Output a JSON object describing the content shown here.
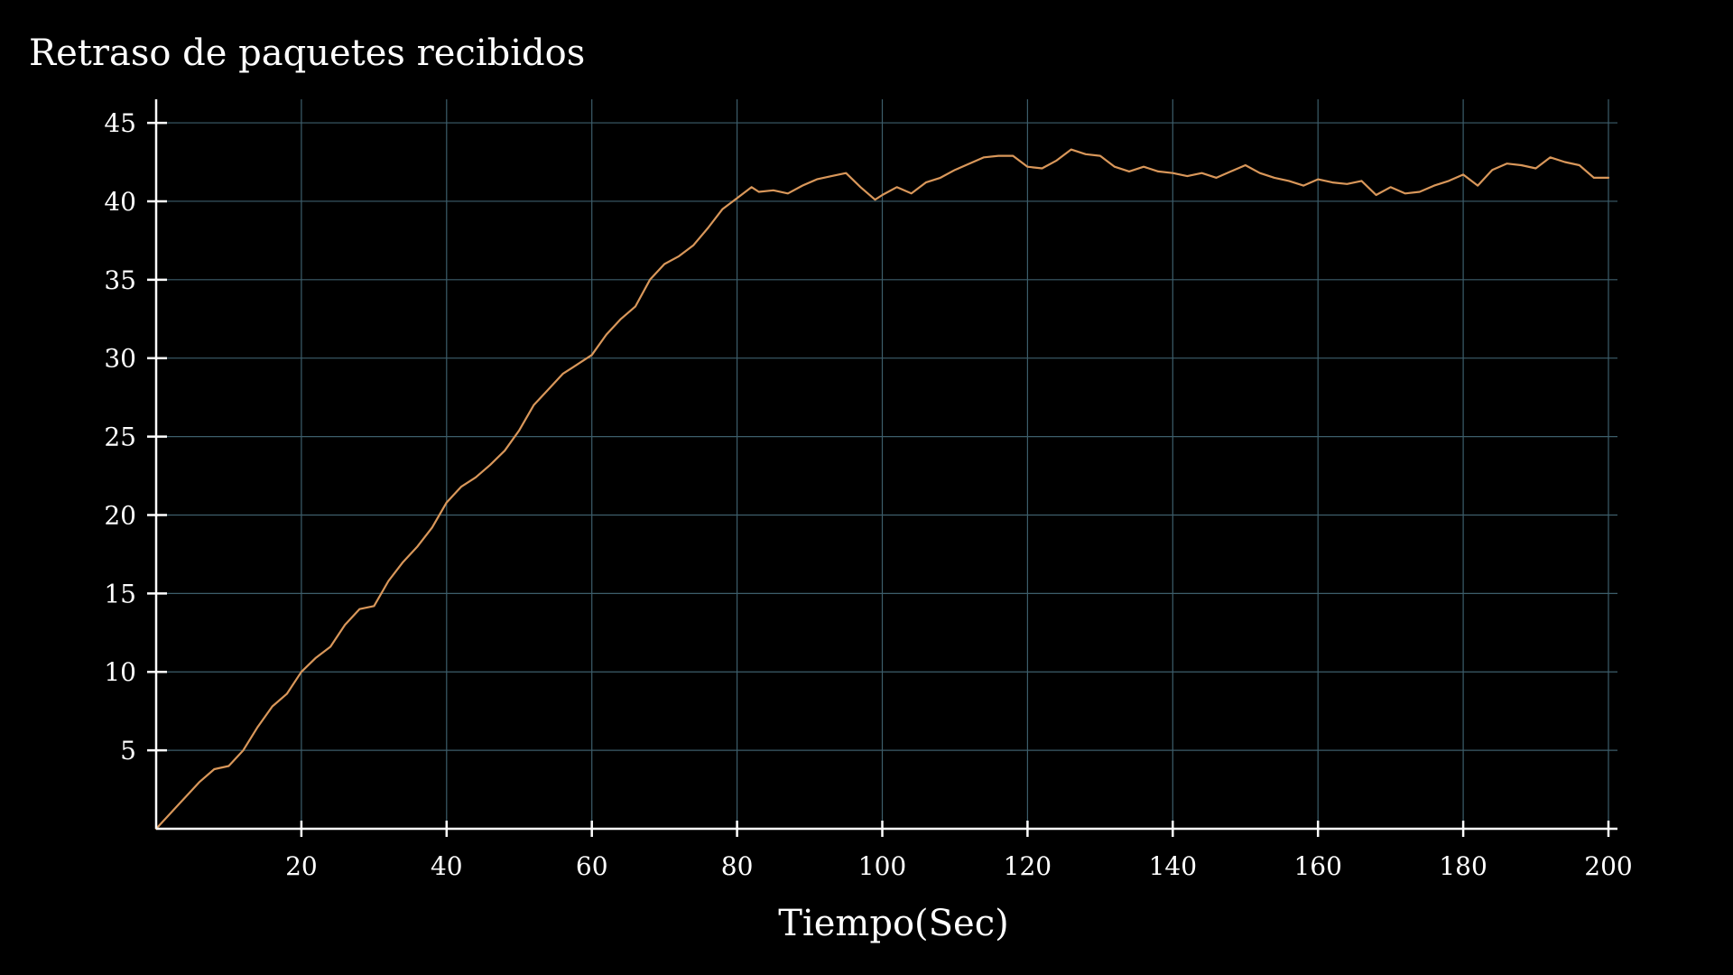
{
  "chart_data": {
    "type": "line",
    "title": "Retraso de paquetes recibidos",
    "xlabel": "Tiempo(Sec)",
    "ylabel": "",
    "xlim": [
      0,
      200
    ],
    "ylim": [
      0,
      46.5
    ],
    "xticks": [
      20,
      40,
      60,
      80,
      100,
      120,
      140,
      160,
      180,
      200
    ],
    "yticks": [
      5,
      10,
      15,
      20,
      25,
      30,
      35,
      40,
      45
    ],
    "grid": true,
    "legend": "none",
    "colors": {
      "background": "#000000",
      "line": "#d9975a",
      "grid": "#3d5e6b",
      "axis": "#ffffff",
      "text": "#ffffff"
    },
    "series": [
      {
        "x": [
          0,
          2,
          4,
          6,
          8,
          10,
          12,
          14,
          16,
          18,
          20,
          22,
          24,
          26,
          28,
          30,
          32,
          34,
          36,
          38,
          40,
          42,
          44,
          46,
          48,
          50,
          52,
          54,
          56,
          58,
          60,
          62,
          64,
          66,
          68,
          70,
          72,
          74,
          76,
          78,
          80,
          82,
          83,
          85,
          87,
          89,
          91,
          93,
          95,
          97,
          99,
          100,
          102,
          104,
          106,
          108,
          110,
          112,
          114,
          116,
          118,
          120,
          122,
          124,
          126,
          128,
          130,
          132,
          134,
          136,
          138,
          140,
          142,
          144,
          146,
          148,
          150,
          152,
          154,
          156,
          158,
          160,
          162,
          164,
          166,
          168,
          170,
          172,
          174,
          176,
          178,
          180,
          182,
          184,
          186,
          188,
          190,
          192,
          194,
          196,
          198,
          200
        ],
        "y": [
          0,
          1,
          2,
          3,
          3.8,
          4,
          5,
          6.5,
          7.8,
          8.6,
          10,
          10.9,
          11.6,
          13,
          14,
          14.2,
          15.8,
          17,
          18,
          19.2,
          20.8,
          21.8,
          22.4,
          23.2,
          24.1,
          25.4,
          27,
          28,
          29,
          29.6,
          30.2,
          31.5,
          32.5,
          33.3,
          35,
          36,
          36.5,
          37.2,
          38.3,
          39.5,
          40.2,
          40.9,
          40.6,
          40.7,
          40.5,
          41,
          41.4,
          41.6,
          41.8,
          40.9,
          40.1,
          40.4,
          40.9,
          40.5,
          41.2,
          41.5,
          42,
          42.4,
          42.8,
          42.9,
          42.9,
          42.2,
          42.1,
          42.6,
          43.3,
          43,
          42.9,
          42.2,
          41.9,
          42.2,
          41.9,
          41.8,
          41.6,
          41.8,
          41.5,
          41.9,
          42.3,
          41.8,
          41.5,
          41.3,
          41,
          41.4,
          41.2,
          41.1,
          41.3,
          40.4,
          40.9,
          40.5,
          40.6,
          41,
          41.3,
          41.7,
          41,
          42,
          42.4,
          42.3,
          42.1,
          42.8,
          42.5,
          42.3,
          41.5,
          41.5
        ]
      }
    ]
  }
}
